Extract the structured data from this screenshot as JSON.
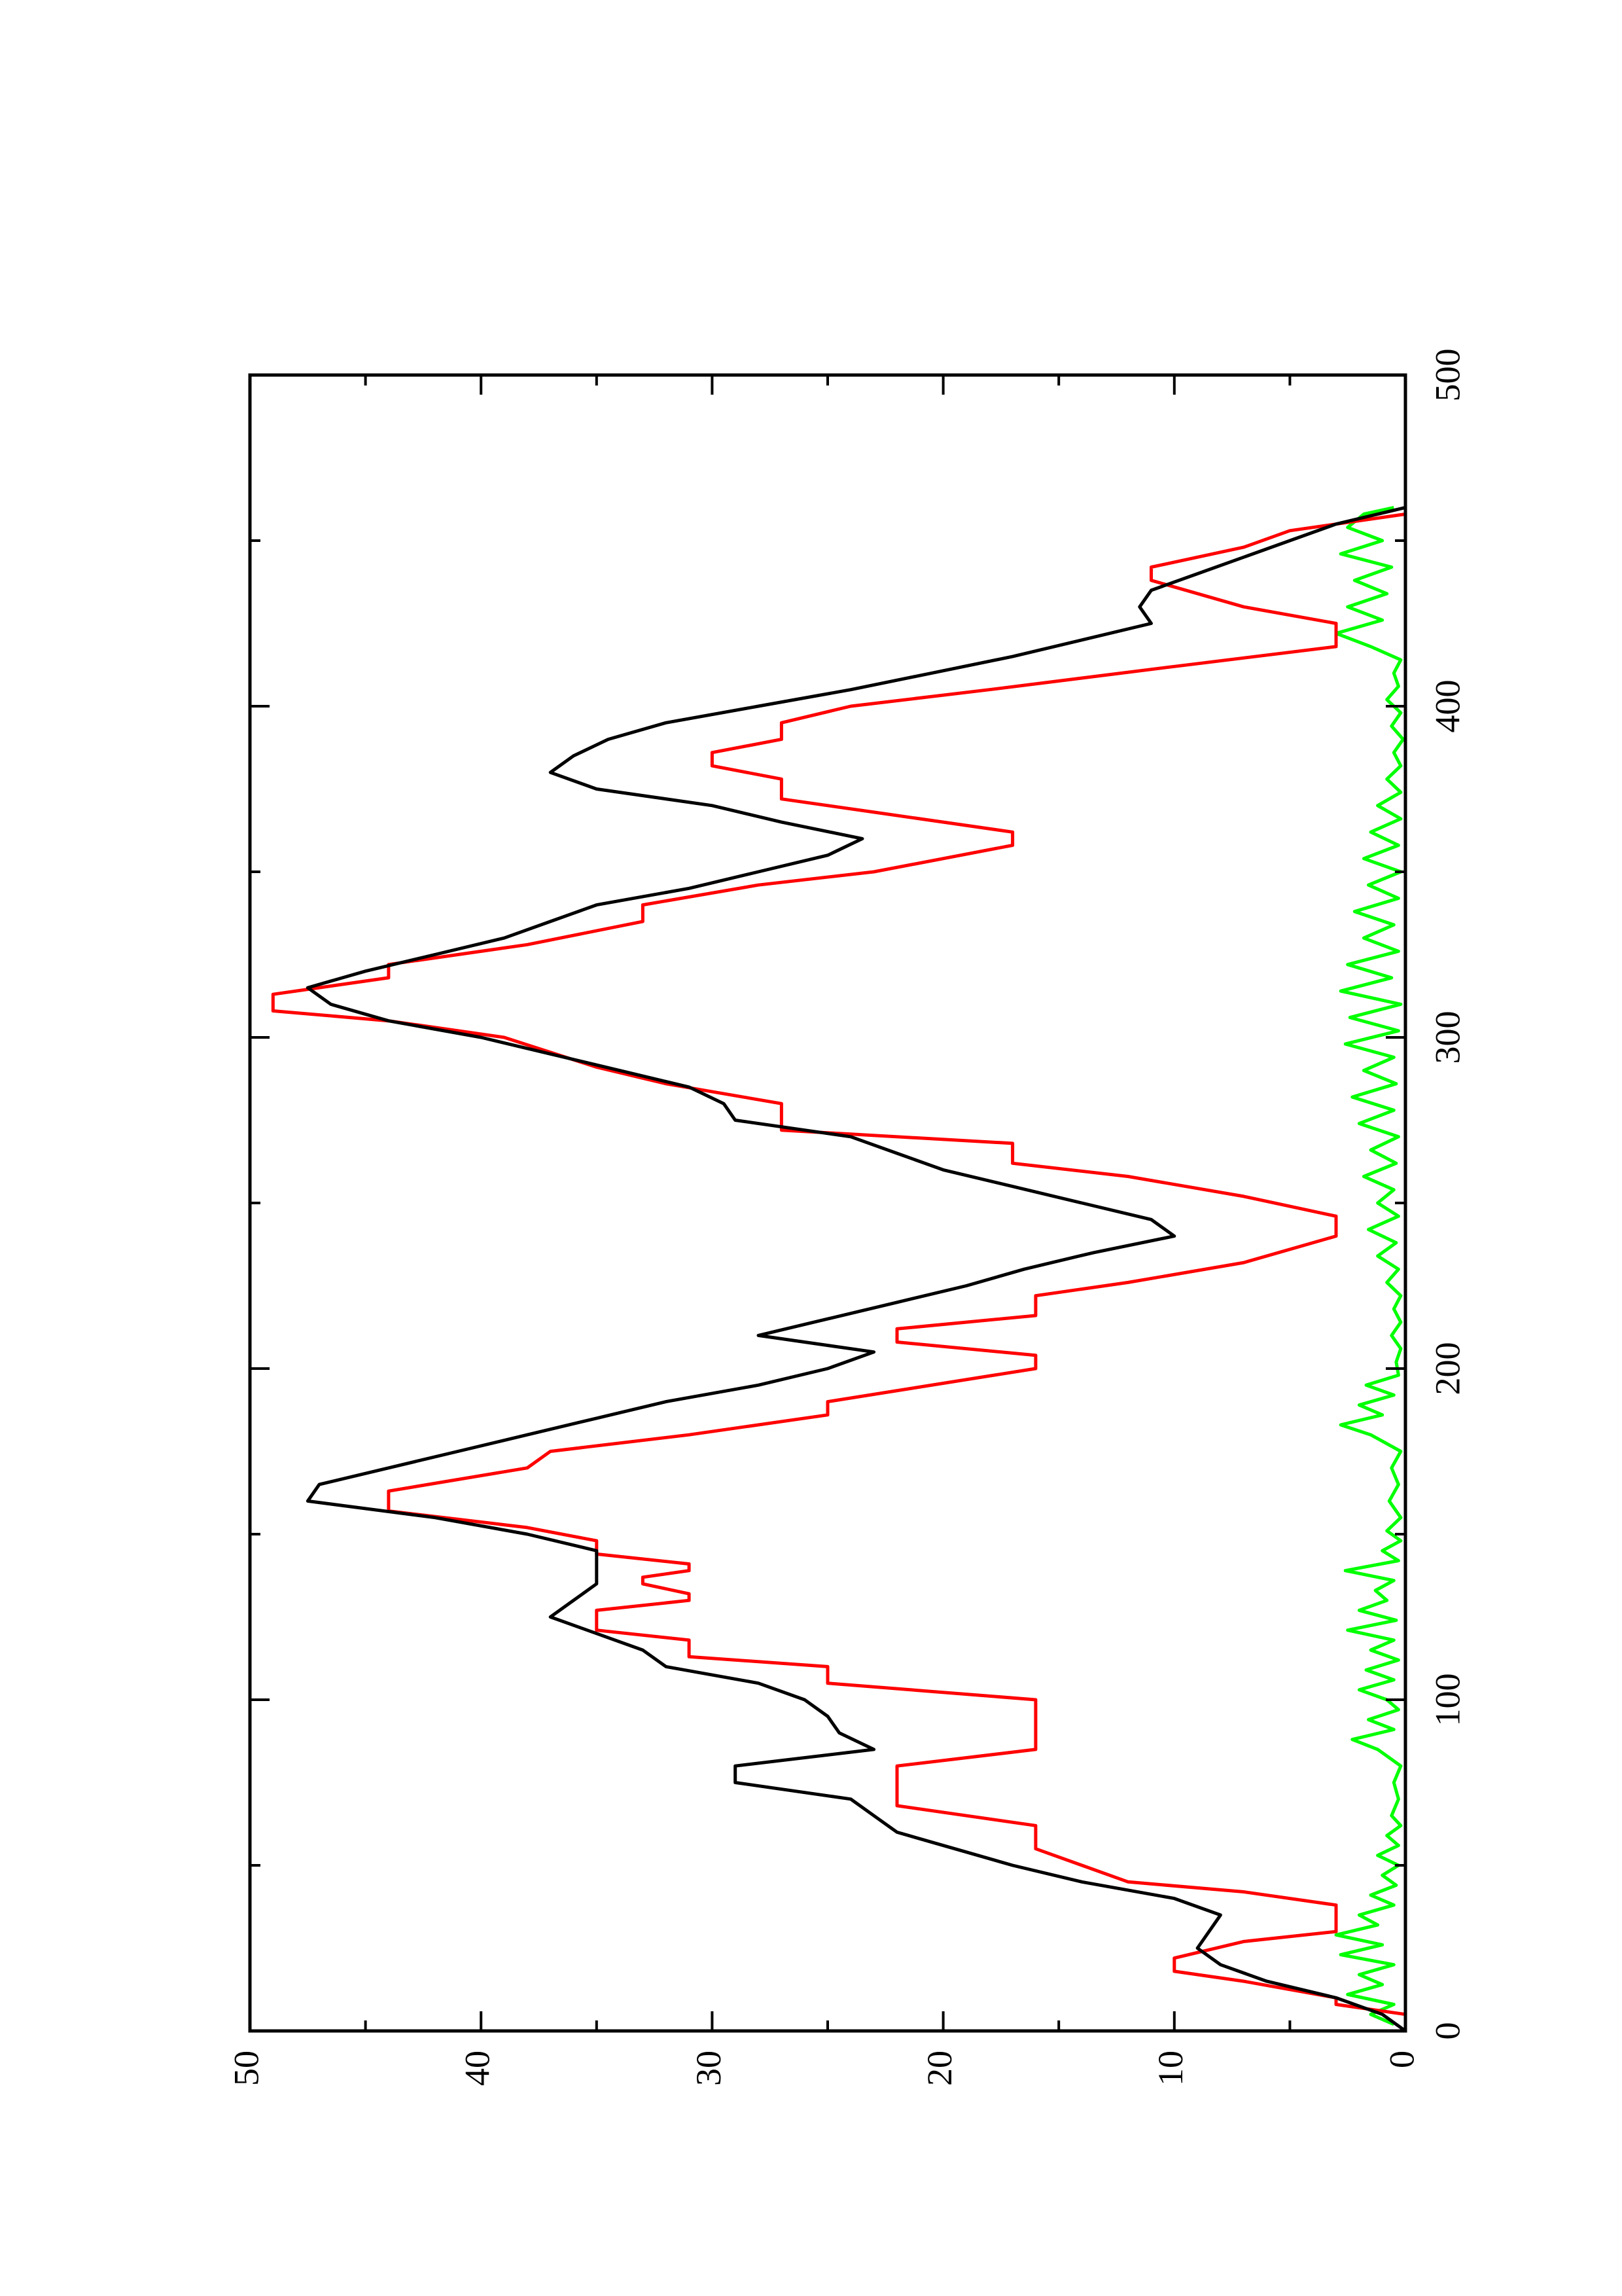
{
  "chart_data": {
    "type": "line",
    "orientation": "rotated-90-ccw",
    "title": "",
    "xlabel": "",
    "ylabel": "",
    "xlim": [
      0,
      500
    ],
    "ylim": [
      0,
      50
    ],
    "x_ticks": [
      0,
      100,
      200,
      300,
      400,
      500
    ],
    "x_tick_labels": [
      "0",
      "100",
      "200",
      "300",
      "400",
      "500"
    ],
    "y_ticks": [
      0,
      10,
      20,
      30,
      40,
      50
    ],
    "y_tick_labels": [
      "0",
      "10",
      "20",
      "30",
      "40",
      "50"
    ],
    "grid": false,
    "series": [
      {
        "color": "#000000",
        "style": "smooth",
        "points": [
          [
            0,
            0
          ],
          [
            5,
            1
          ],
          [
            10,
            3
          ],
          [
            15,
            6
          ],
          [
            20,
            8
          ],
          [
            25,
            9
          ],
          [
            30,
            8.5
          ],
          [
            35,
            8
          ],
          [
            40,
            10
          ],
          [
            45,
            14
          ],
          [
            50,
            17
          ],
          [
            55,
            19.5
          ],
          [
            60,
            22
          ],
          [
            65,
            23
          ],
          [
            70,
            24
          ],
          [
            75,
            29
          ],
          [
            80,
            29
          ],
          [
            85,
            23
          ],
          [
            90,
            24.5
          ],
          [
            95,
            25
          ],
          [
            100,
            26
          ],
          [
            105,
            28
          ],
          [
            110,
            32
          ],
          [
            115,
            33
          ],
          [
            120,
            35
          ],
          [
            125,
            37
          ],
          [
            130,
            36
          ],
          [
            135,
            35
          ],
          [
            140,
            35
          ],
          [
            145,
            35
          ],
          [
            150,
            38
          ],
          [
            155,
            42
          ],
          [
            160,
            47.5
          ],
          [
            165,
            47
          ],
          [
            170,
            44
          ],
          [
            175,
            41
          ],
          [
            180,
            38
          ],
          [
            185,
            35
          ],
          [
            190,
            32
          ],
          [
            195,
            28
          ],
          [
            200,
            25
          ],
          [
            205,
            23
          ],
          [
            210,
            28
          ],
          [
            215,
            25
          ],
          [
            220,
            22
          ],
          [
            225,
            19
          ],
          [
            230,
            16.5
          ],
          [
            235,
            13.5
          ],
          [
            240,
            10
          ],
          [
            245,
            11
          ],
          [
            250,
            14
          ],
          [
            255,
            17
          ],
          [
            260,
            20
          ],
          [
            265,
            22
          ],
          [
            270,
            24
          ],
          [
            275,
            29
          ],
          [
            280,
            29.5
          ],
          [
            285,
            31
          ],
          [
            290,
            34
          ],
          [
            295,
            37
          ],
          [
            300,
            40
          ],
          [
            305,
            44
          ],
          [
            310,
            46.5
          ],
          [
            315,
            47.5
          ],
          [
            320,
            45
          ],
          [
            325,
            42
          ],
          [
            330,
            39
          ],
          [
            335,
            37
          ],
          [
            340,
            35
          ],
          [
            345,
            31
          ],
          [
            350,
            28
          ],
          [
            355,
            25
          ],
          [
            360,
            23.5
          ],
          [
            365,
            27
          ],
          [
            370,
            30
          ],
          [
            375,
            35
          ],
          [
            380,
            37
          ],
          [
            385,
            36
          ],
          [
            390,
            34.5
          ],
          [
            395,
            32
          ],
          [
            400,
            28
          ],
          [
            405,
            24
          ],
          [
            410,
            20.5
          ],
          [
            415,
            17
          ],
          [
            420,
            14
          ],
          [
            425,
            11
          ],
          [
            430,
            11.5
          ],
          [
            435,
            11
          ],
          [
            440,
            9
          ],
          [
            445,
            7
          ],
          [
            450,
            5
          ],
          [
            455,
            3
          ],
          [
            460,
            0
          ]
        ]
      },
      {
        "color": "#ff0000",
        "style": "step",
        "points": [
          [
            5,
            0
          ],
          [
            8,
            3
          ],
          [
            10,
            3
          ],
          [
            15,
            7
          ],
          [
            18,
            10
          ],
          [
            22,
            10
          ],
          [
            27,
            7
          ],
          [
            30,
            3
          ],
          [
            38,
            3
          ],
          [
            42,
            7
          ],
          [
            45,
            12
          ],
          [
            55,
            16
          ],
          [
            62,
            16
          ],
          [
            68,
            22
          ],
          [
            80,
            22
          ],
          [
            85,
            16
          ],
          [
            100,
            16
          ],
          [
            105,
            25
          ],
          [
            110,
            25
          ],
          [
            113,
            31
          ],
          [
            118,
            31
          ],
          [
            121,
            35
          ],
          [
            127,
            35
          ],
          [
            130,
            31
          ],
          [
            132,
            31
          ],
          [
            135,
            33
          ],
          [
            137,
            33
          ],
          [
            139,
            31
          ],
          [
            141,
            31
          ],
          [
            144,
            35
          ],
          [
            148,
            35
          ],
          [
            152,
            38
          ],
          [
            157,
            44
          ],
          [
            163,
            44
          ],
          [
            170,
            38
          ],
          [
            175,
            37
          ],
          [
            180,
            31
          ],
          [
            186,
            25
          ],
          [
            190,
            25
          ],
          [
            200,
            16
          ],
          [
            204,
            16
          ],
          [
            208,
            22
          ],
          [
            212,
            22
          ],
          [
            216,
            16
          ],
          [
            222,
            16
          ],
          [
            226,
            12
          ],
          [
            232,
            7
          ],
          [
            240,
            3
          ],
          [
            246,
            3
          ],
          [
            252,
            7
          ],
          [
            258,
            12
          ],
          [
            262,
            17
          ],
          [
            268,
            17
          ],
          [
            272,
            27
          ],
          [
            280,
            27
          ],
          [
            286,
            32
          ],
          [
            291,
            35
          ],
          [
            300,
            39
          ],
          [
            305,
            44
          ],
          [
            308,
            49
          ],
          [
            313,
            49
          ],
          [
            318,
            44
          ],
          [
            322,
            44
          ],
          [
            328,
            38
          ],
          [
            335,
            33
          ],
          [
            340,
            33
          ],
          [
            346,
            28
          ],
          [
            350,
            23
          ],
          [
            358,
            17
          ],
          [
            362,
            17
          ],
          [
            368,
            23
          ],
          [
            372,
            27
          ],
          [
            378,
            27
          ],
          [
            382,
            30
          ],
          [
            386,
            30
          ],
          [
            390,
            27
          ],
          [
            395,
            27
          ],
          [
            400,
            24
          ],
          [
            405,
            18
          ],
          [
            412,
            10
          ],
          [
            418,
            3
          ],
          [
            425,
            3
          ],
          [
            430,
            7
          ],
          [
            438,
            11
          ],
          [
            442,
            11
          ],
          [
            448,
            7
          ],
          [
            453,
            5
          ],
          [
            458,
            0
          ]
        ]
      },
      {
        "color": "#00ff00",
        "style": "noisy",
        "points": [
          [
            2,
            0.5
          ],
          [
            5,
            1.5
          ],
          [
            8,
            0.5
          ],
          [
            11,
            2.5
          ],
          [
            14,
            1
          ],
          [
            17,
            2
          ],
          [
            20,
            0.5
          ],
          [
            23,
            2.8
          ],
          [
            26,
            1
          ],
          [
            29,
            3
          ],
          [
            32,
            1.2
          ],
          [
            35,
            2
          ],
          [
            38,
            0.5
          ],
          [
            41,
            1.5
          ],
          [
            44,
            0.4
          ],
          [
            47,
            1
          ],
          [
            50,
            0.3
          ],
          [
            53,
            1.2
          ],
          [
            56,
            0.3
          ],
          [
            59,
            0.8
          ],
          [
            62,
            0.2
          ],
          [
            65,
            0.6
          ],
          [
            70,
            0.3
          ],
          [
            75,
            0.5
          ],
          [
            80,
            0.2
          ],
          [
            85,
            1.2
          ],
          [
            88,
            2.3
          ],
          [
            91,
            0.5
          ],
          [
            94,
            1.6
          ],
          [
            97,
            0.3
          ],
          [
            100,
            0.8
          ],
          [
            103,
            2
          ],
          [
            106,
            0.5
          ],
          [
            109,
            1.7
          ],
          [
            112,
            0.3
          ],
          [
            115,
            1.5
          ],
          [
            118,
            0.5
          ],
          [
            121,
            2.5
          ],
          [
            124,
            0.4
          ],
          [
            127,
            2
          ],
          [
            130,
            0.8
          ],
          [
            133,
            1.3
          ],
          [
            136,
            0.5
          ],
          [
            139,
            2.6
          ],
          [
            142,
            0.3
          ],
          [
            145,
            1
          ],
          [
            148,
            0.2
          ],
          [
            151,
            0.8
          ],
          [
            155,
            0.2
          ],
          [
            160,
            0.7
          ],
          [
            165,
            0.3
          ],
          [
            170,
            0.6
          ],
          [
            175,
            0.2
          ],
          [
            180,
            1.5
          ],
          [
            183,
            2.8
          ],
          [
            186,
            1
          ],
          [
            189,
            2
          ],
          [
            192,
            0.5
          ],
          [
            195,
            1.7
          ],
          [
            198,
            0.3
          ],
          [
            202,
            0.4
          ],
          [
            206,
            0.2
          ],
          [
            210,
            0.6
          ],
          [
            214,
            0.2
          ],
          [
            218,
            0.5
          ],
          [
            222,
            0.2
          ],
          [
            226,
            0.8
          ],
          [
            230,
            0.3
          ],
          [
            234,
            1.2
          ],
          [
            238,
            0.4
          ],
          [
            242,
            1.6
          ],
          [
            246,
            0.3
          ],
          [
            250,
            1.2
          ],
          [
            254,
            0.5
          ],
          [
            258,
            1.8
          ],
          [
            262,
            0.4
          ],
          [
            266,
            1.5
          ],
          [
            270,
            0.3
          ],
          [
            274,
            2
          ],
          [
            278,
            0.5
          ],
          [
            282,
            2.3
          ],
          [
            286,
            0.4
          ],
          [
            290,
            1.8
          ],
          [
            294,
            0.5
          ],
          [
            298,
            2.6
          ],
          [
            302,
            0.3
          ],
          [
            306,
            2.4
          ],
          [
            310,
            0.2
          ],
          [
            314,
            2.8
          ],
          [
            318,
            0.6
          ],
          [
            322,
            2.5
          ],
          [
            326,
            0.3
          ],
          [
            330,
            1.8
          ],
          [
            334,
            0.5
          ],
          [
            338,
            2.2
          ],
          [
            342,
            0.3
          ],
          [
            346,
            1.6
          ],
          [
            350,
            0.2
          ],
          [
            354,
            1.8
          ],
          [
            358,
            0.3
          ],
          [
            362,
            1.5
          ],
          [
            366,
            0.2
          ],
          [
            370,
            1.2
          ],
          [
            374,
            0.2
          ],
          [
            378,
            0.8
          ],
          [
            382,
            0.2
          ],
          [
            386,
            0.5
          ],
          [
            390,
            0.1
          ],
          [
            394,
            0.6
          ],
          [
            398,
            0.2
          ],
          [
            402,
            0.8
          ],
          [
            406,
            0.3
          ],
          [
            410,
            0.5
          ],
          [
            414,
            0.2
          ],
          [
            418,
            1.5
          ],
          [
            422,
            3
          ],
          [
            426,
            1
          ],
          [
            430,
            2.5
          ],
          [
            434,
            0.8
          ],
          [
            438,
            2.2
          ],
          [
            442,
            0.6
          ],
          [
            446,
            2.8
          ],
          [
            450,
            1
          ],
          [
            454,
            2.5
          ],
          [
            458,
            1.8
          ],
          [
            460,
            0.5
          ]
        ]
      }
    ]
  }
}
